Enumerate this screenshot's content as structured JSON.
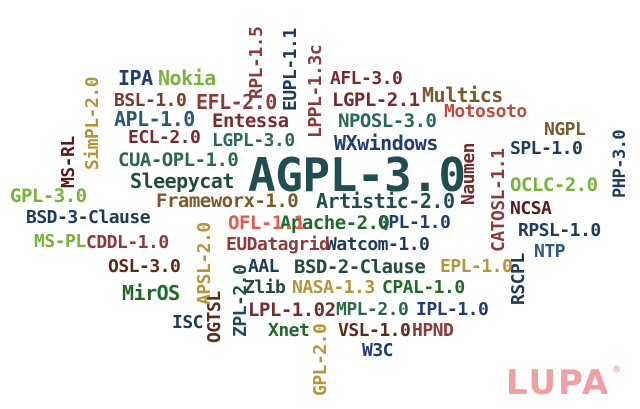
{
  "palette": {
    "teal": "#1f4d50",
    "green": "#1f6a2a",
    "lime": "#79b33c",
    "maroon": "#8e3a3a",
    "red": "#c24b3c",
    "brown": "#7a5a2a",
    "olive": "#b59535",
    "navy": "#213a7a",
    "pink": "#e55a4a",
    "watermark": "#f0a0a4"
  },
  "words": [
    {
      "text": "AGPL-3.0",
      "color": "#1f4d50",
      "rotated": false
    },
    {
      "text": "IPA",
      "color": "#213a7a",
      "rotated": false
    },
    {
      "text": "Nokia",
      "color": "#79b33c",
      "rotated": false
    },
    {
      "text": "BSL-1.0",
      "color": "#7a3a2a",
      "rotated": false
    },
    {
      "text": "EFL-2.0",
      "color": "#8e3a3a",
      "rotated": false
    },
    {
      "text": "APL-1.0",
      "color": "#2a5a7a",
      "rotated": false
    },
    {
      "text": "Entessa",
      "color": "#7a2a2a",
      "rotated": false
    },
    {
      "text": "ECL-2.0",
      "color": "#7a2a2a",
      "rotated": false
    },
    {
      "text": "LGPL-3.0",
      "color": "#2a6a5a",
      "rotated": false
    },
    {
      "text": "CUA-OPL-1.0",
      "color": "#2a6a4a",
      "rotated": false
    },
    {
      "text": "Sleepycat",
      "color": "#1f4d3a",
      "rotated": false
    },
    {
      "text": "GPL-3.0",
      "color": "#79b33c",
      "rotated": false
    },
    {
      "text": "BSD-3-Clause",
      "color": "#213a5a",
      "rotated": false
    },
    {
      "text": "MS-PL",
      "color": "#79b33c",
      "rotated": false
    },
    {
      "text": "CDDL-1.0",
      "color": "#8e3a3a",
      "rotated": false
    },
    {
      "text": "OSL-3.0",
      "color": "#5a2a1a",
      "rotated": false
    },
    {
      "text": "MirOS",
      "color": "#1f6a2a",
      "rotated": false
    },
    {
      "text": "ISC",
      "color": "#213a5a",
      "rotated": false
    },
    {
      "text": "AFL-3.0",
      "color": "#7a2a2a",
      "rotated": false
    },
    {
      "text": "LGPL-2.1",
      "color": "#7a2a2a",
      "rotated": false
    },
    {
      "text": "Multics",
      "color": "#7a5a2a",
      "rotated": false
    },
    {
      "text": "NPOSL-3.0",
      "color": "#2a6a5a",
      "rotated": false
    },
    {
      "text": "Motosoto",
      "color": "#c24b3c",
      "rotated": false
    },
    {
      "text": "WXwindows",
      "color": "#213a7a",
      "rotated": false
    },
    {
      "text": "NGPL",
      "color": "#7a5a2a",
      "rotated": false
    },
    {
      "text": "SPL-1.0",
      "color": "#213a5a",
      "rotated": false
    },
    {
      "text": "OCLC-2.0",
      "color": "#79b33c",
      "rotated": false
    },
    {
      "text": "NCSA",
      "color": "#5a1a1a",
      "rotated": false
    },
    {
      "text": "RPSL-1.0",
      "color": "#213a5a",
      "rotated": false
    },
    {
      "text": "NTP",
      "color": "#2a5a7a",
      "rotated": false
    },
    {
      "text": "Frameworx-1.0",
      "color": "#7a5a2a",
      "rotated": false
    },
    {
      "text": "Artistic-2.0",
      "color": "#1f4d50",
      "rotated": false
    },
    {
      "text": "OFL-1.1",
      "color": "#e55a4a",
      "rotated": false
    },
    {
      "text": "Apache-2.0",
      "color": "#1f6a2a",
      "rotated": false
    },
    {
      "text": "QPL-1.0",
      "color": "#213a7a",
      "rotated": false
    },
    {
      "text": "EUDatagrid",
      "color": "#8e3a3a",
      "rotated": false
    },
    {
      "text": "Watcom-1.0",
      "color": "#213a5a",
      "rotated": false
    },
    {
      "text": "AAL",
      "color": "#213a5a",
      "rotated": false
    },
    {
      "text": "BSD-2-Clause",
      "color": "#1f4d3a",
      "rotated": false
    },
    {
      "text": "EPL-1.0",
      "color": "#b59535",
      "rotated": false
    },
    {
      "text": "Zlib",
      "color": "#1f4d3a",
      "rotated": false
    },
    {
      "text": "NASA-1.3",
      "color": "#b59535",
      "rotated": false
    },
    {
      "text": "CPAL-1.0",
      "color": "#1f6a2a",
      "rotated": false
    },
    {
      "text": "LPL-1.02",
      "color": "#7a2a2a",
      "rotated": false
    },
    {
      "text": "MPL-2.0",
      "color": "#2a6a4a",
      "rotated": false
    },
    {
      "text": "IPL-1.0",
      "color": "#213a7a",
      "rotated": false
    },
    {
      "text": "Xnet",
      "color": "#1f6a2a",
      "rotated": false
    },
    {
      "text": "VSL-1.0",
      "color": "#5a2a1a",
      "rotated": false
    },
    {
      "text": "HPND",
      "color": "#8e3a3a",
      "rotated": false
    },
    {
      "text": "W3C",
      "color": "#213a7a",
      "rotated": false
    },
    {
      "text": "RPL-1.5",
      "color": "#8e3a3a",
      "rotated": true
    },
    {
      "text": "EUPL-1.1",
      "color": "#213a5a",
      "rotated": true
    },
    {
      "text": "LPPL-1.3c",
      "color": "#8e3a3a",
      "rotated": true
    },
    {
      "text": "MS-RL",
      "color": "#5a1a1a",
      "rotated": true
    },
    {
      "text": "SimPL-2.0",
      "color": "#b59535",
      "rotated": true
    },
    {
      "text": "Naumen",
      "color": "#7a2a2a",
      "rotated": true
    },
    {
      "text": "CATOSL-1.1",
      "color": "#8e3a3a",
      "rotated": true
    },
    {
      "text": "PHP-3.0",
      "color": "#213a5a",
      "rotated": true
    },
    {
      "text": "APSL-2.0",
      "color": "#b59535",
      "rotated": true
    },
    {
      "text": "OGTSL",
      "color": "#5a2a1a",
      "rotated": true
    },
    {
      "text": "ZPL-2.0",
      "color": "#1f4d50",
      "rotated": true
    },
    {
      "text": "RSCPL",
      "color": "#213a5a",
      "rotated": true
    },
    {
      "text": "GPL-2.0",
      "color": "#b59535",
      "rotated": true
    }
  ],
  "watermark": {
    "text": "LUPA",
    "mark": "®"
  }
}
